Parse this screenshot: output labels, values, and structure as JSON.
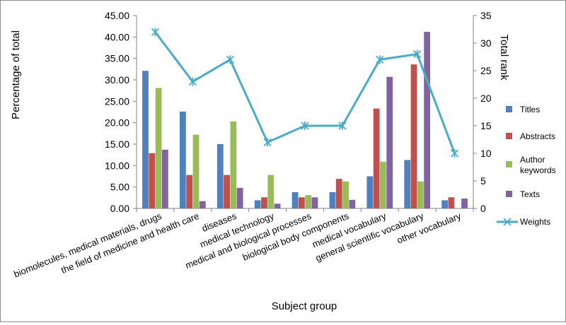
{
  "chart_data": {
    "type": "bar",
    "xlabel": "Subject group",
    "ylabel": "Percentage of total",
    "y2label": "Total rank",
    "ylim": [
      0,
      45
    ],
    "y2lim": [
      0,
      35
    ],
    "yticks": [
      "0.00",
      "5.00",
      "10.00",
      "15.00",
      "20.00",
      "25.00",
      "30.00",
      "35.00",
      "40.00",
      "45.00"
    ],
    "y2ticks": [
      "0",
      "5",
      "10",
      "15",
      "20",
      "25",
      "30",
      "35"
    ],
    "categories": [
      "biomolecules, medical materials, drugs",
      "the field of medicine and health care",
      "diseases",
      "medical technology",
      "medical and biological processes",
      "biological body components",
      "medical vocabulary",
      "general scientific vocabulary",
      "other vocabulary"
    ],
    "series": [
      {
        "name": "Titles",
        "color": "#4f81bd",
        "values": [
          32.1,
          22.6,
          15.0,
          1.9,
          3.8,
          3.8,
          7.5,
          11.3,
          1.9
        ]
      },
      {
        "name": "Abstracts",
        "color": "#c0504d",
        "values": [
          12.9,
          7.8,
          7.8,
          2.6,
          2.6,
          6.9,
          23.3,
          33.6,
          2.6
        ]
      },
      {
        "name": "Author keywords",
        "color": "#9bbb59",
        "values": [
          28.1,
          17.2,
          20.3,
          7.8,
          3.1,
          6.3,
          10.9,
          6.3,
          0
        ]
      },
      {
        "name": "Texts",
        "color": "#8064a2",
        "values": [
          13.7,
          1.7,
          4.8,
          1.1,
          2.6,
          2.0,
          30.7,
          41.2,
          2.3
        ]
      }
    ],
    "line_series": {
      "name": "Weights",
      "color": "#4bacc6",
      "axis": "secondary",
      "values": [
        32,
        23,
        27,
        12,
        15,
        15,
        27,
        28,
        10
      ]
    },
    "legend_position": "right"
  }
}
